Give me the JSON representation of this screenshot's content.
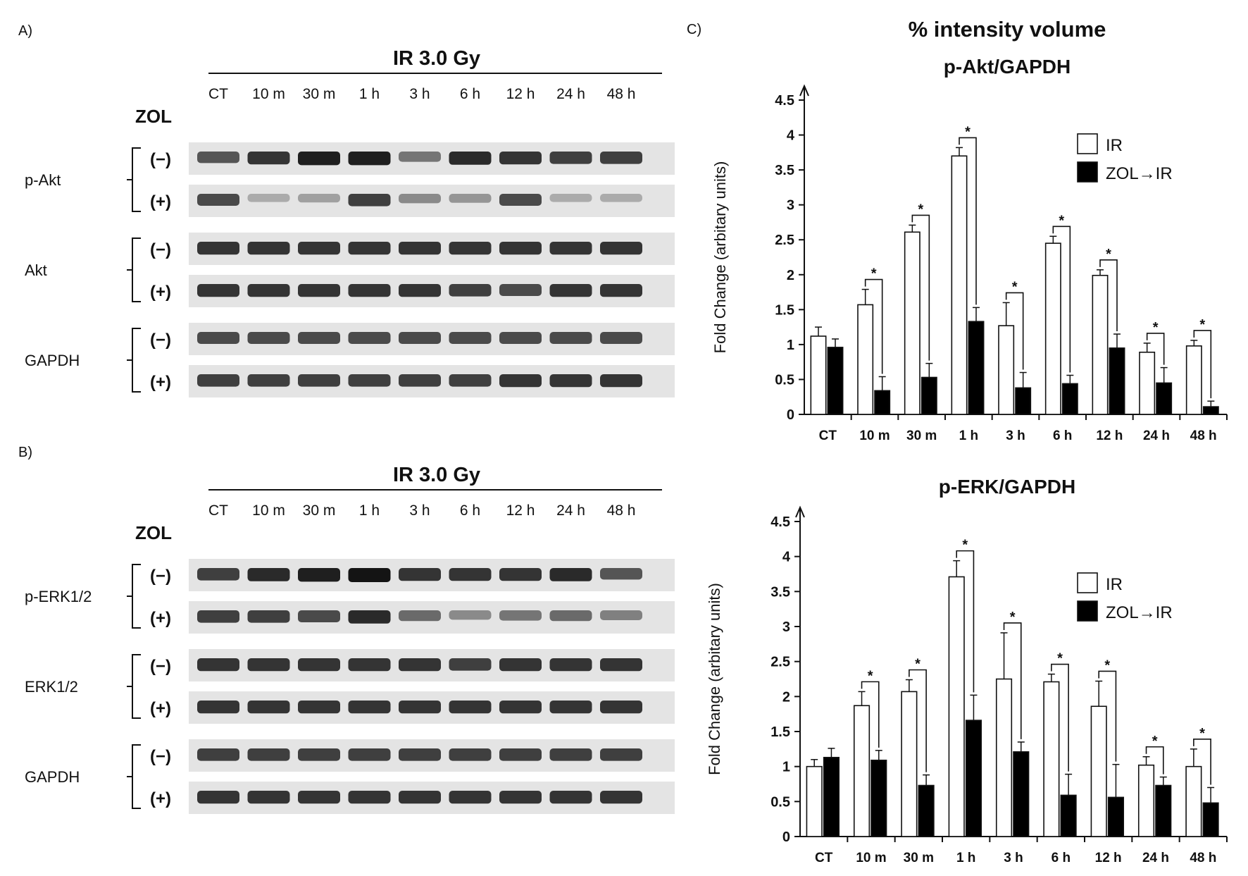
{
  "figure": {
    "panel_a_label": "A)",
    "panel_b_label": "B)",
    "panel_c_label": "C)",
    "chart_section_title": "% intensity volume"
  },
  "blots": [
    {
      "treatment_label": "IR 3.0 Gy",
      "zol_label": "ZOL",
      "lanes": [
        "CT",
        "10 m",
        "30 m",
        "1 h",
        "3 h",
        "6 h",
        "12 h",
        "24 h",
        "48 h"
      ],
      "proteins": [
        {
          "name": "p-Akt",
          "rows": [
            {
              "sign": "(−)",
              "intensity": [
                0.7,
                0.85,
                0.95,
                0.95,
                0.55,
                0.9,
                0.85,
                0.8,
                0.8
              ]
            },
            {
              "sign": "(+)",
              "intensity": [
                0.75,
                0.3,
                0.35,
                0.8,
                0.45,
                0.4,
                0.75,
                0.3,
                0.3
              ]
            }
          ]
        },
        {
          "name": "Akt",
          "rows": [
            {
              "sign": "(−)",
              "intensity": [
                0.85,
                0.85,
                0.85,
                0.85,
                0.85,
                0.85,
                0.85,
                0.85,
                0.85
              ]
            },
            {
              "sign": "(+)",
              "intensity": [
                0.85,
                0.85,
                0.85,
                0.85,
                0.85,
                0.8,
                0.75,
                0.85,
                0.85
              ]
            }
          ]
        },
        {
          "name": "GAPDH",
          "rows": [
            {
              "sign": "(−)",
              "intensity": [
                0.75,
                0.75,
                0.75,
                0.75,
                0.75,
                0.75,
                0.75,
                0.75,
                0.75
              ]
            },
            {
              "sign": "(+)",
              "intensity": [
                0.8,
                0.8,
                0.8,
                0.8,
                0.8,
                0.8,
                0.85,
                0.85,
                0.85
              ]
            }
          ]
        }
      ]
    },
    {
      "treatment_label": "IR 3.0 Gy",
      "zol_label": "ZOL",
      "lanes": [
        "CT",
        "10 m",
        "30 m",
        "1 h",
        "3 h",
        "6 h",
        "12 h",
        "24 h",
        "48 h"
      ],
      "proteins": [
        {
          "name": "p-ERK1/2",
          "rows": [
            {
              "sign": "(−)",
              "intensity": [
                0.8,
                0.9,
                0.95,
                1.0,
                0.85,
                0.85,
                0.85,
                0.9,
                0.7
              ]
            },
            {
              "sign": "(+)",
              "intensity": [
                0.8,
                0.8,
                0.75,
                0.9,
                0.6,
                0.45,
                0.55,
                0.6,
                0.5
              ]
            }
          ]
        },
        {
          "name": "ERK1/2",
          "rows": [
            {
              "sign": "(−)",
              "intensity": [
                0.85,
                0.85,
                0.85,
                0.85,
                0.85,
                0.8,
                0.85,
                0.85,
                0.85
              ]
            },
            {
              "sign": "(+)",
              "intensity": [
                0.85,
                0.85,
                0.85,
                0.85,
                0.85,
                0.85,
                0.85,
                0.85,
                0.85
              ]
            }
          ]
        },
        {
          "name": "GAPDH",
          "rows": [
            {
              "sign": "(−)",
              "intensity": [
                0.8,
                0.8,
                0.8,
                0.8,
                0.8,
                0.8,
                0.8,
                0.8,
                0.8
              ]
            },
            {
              "sign": "(+)",
              "intensity": [
                0.85,
                0.85,
                0.85,
                0.85,
                0.85,
                0.85,
                0.85,
                0.85,
                0.85
              ]
            }
          ]
        }
      ]
    }
  ],
  "chart_data": [
    {
      "type": "bar",
      "title": "p-Akt/GAPDH",
      "ylabel": "Fold Change (arbitary units)",
      "ylim": [
        0,
        4.5
      ],
      "yticks": [
        "0",
        "0.5",
        "1",
        "1.5",
        "2",
        "2.5",
        "3",
        "3.5",
        "4",
        "4.5"
      ],
      "categories": [
        "CT",
        "10 m",
        "30 m",
        "1 h",
        "3 h",
        "6 h",
        "12 h",
        "24 h",
        "48 h"
      ],
      "series": [
        {
          "name": "IR",
          "color": "#ffffff",
          "values": [
            1.12,
            1.57,
            2.61,
            3.7,
            1.27,
            2.45,
            1.99,
            0.89,
            0.98
          ],
          "errors": [
            0.13,
            0.22,
            0.1,
            0.12,
            0.33,
            0.1,
            0.08,
            0.13,
            0.08
          ]
        },
        {
          "name": "ZOL→IR",
          "color": "#000000",
          "values": [
            0.96,
            0.34,
            0.53,
            1.33,
            0.38,
            0.44,
            0.95,
            0.45,
            0.11
          ],
          "errors": [
            0.12,
            0.2,
            0.2,
            0.2,
            0.22,
            0.12,
            0.2,
            0.22,
            0.08
          ]
        }
      ],
      "significance": [
        "",
        "*",
        "*",
        "*",
        "*",
        "*",
        "*",
        "*",
        "*"
      ],
      "legend_position": "top-right"
    },
    {
      "type": "bar",
      "title": "p-ERK/GAPDH",
      "ylabel": "Fold Change (arbitary units)",
      "ylim": [
        0,
        4.5
      ],
      "yticks": [
        "0",
        "0.5",
        "1",
        "1.5",
        "2",
        "2.5",
        "3",
        "3.5",
        "4",
        "4.5"
      ],
      "categories": [
        "CT",
        "10 m",
        "30 m",
        "1 h",
        "3 h",
        "6 h",
        "12 h",
        "24 h",
        "48 h"
      ],
      "series": [
        {
          "name": "IR",
          "color": "#ffffff",
          "values": [
            1.0,
            1.87,
            2.07,
            3.71,
            2.25,
            2.21,
            1.86,
            1.02,
            1.0
          ],
          "errors": [
            0.1,
            0.2,
            0.17,
            0.23,
            0.66,
            0.11,
            0.36,
            0.12,
            0.25
          ]
        },
        {
          "name": "ZOL→IR",
          "color": "#000000",
          "values": [
            1.13,
            1.09,
            0.73,
            1.66,
            1.21,
            0.59,
            0.56,
            0.73,
            0.48
          ],
          "errors": [
            0.13,
            0.14,
            0.15,
            0.36,
            0.14,
            0.3,
            0.47,
            0.12,
            0.22
          ]
        }
      ],
      "significance": [
        "",
        "*",
        "*",
        "*",
        "*",
        "*",
        "*",
        "*",
        "*"
      ],
      "legend_position": "right"
    }
  ]
}
